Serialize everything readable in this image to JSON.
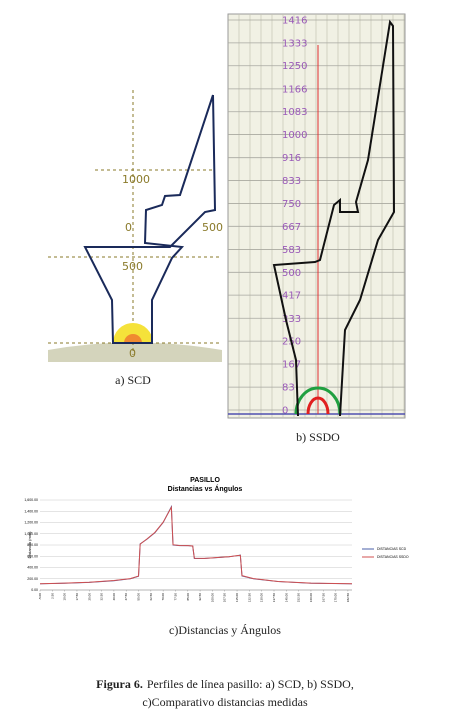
{
  "panels": {
    "a": {
      "caption": "a) SCD",
      "labels": [
        "1000",
        "0",
        "500",
        "500",
        "0"
      ]
    },
    "b": {
      "caption": "b) SSDO",
      "ylim": [
        0,
        1416
      ],
      "yticks": [
        0,
        83,
        167,
        250,
        333,
        417,
        500,
        583,
        667,
        750,
        833,
        916,
        1000,
        1083,
        1166,
        1250,
        1333,
        1416
      ]
    },
    "c": {
      "caption": "c)Distancias y Ángulos"
    }
  },
  "chart_data": {
    "type": "line",
    "title": "PASILLO",
    "subtitle": "Distancias vs Ángulos",
    "y_label": "Distancia (mm)",
    "x": [
      -5,
      10,
      25,
      40,
      50,
      55,
      56,
      60,
      65,
      70,
      75,
      76,
      80,
      85,
      88,
      89,
      95,
      100,
      105,
      110,
      115,
      117,
      118,
      125,
      140,
      160,
      185
    ],
    "series": [
      {
        "name": "DISTANCIAS SCD",
        "color": "#4a5fa8",
        "values": [
          110,
          120,
          135,
          165,
          200,
          245,
          820,
          900,
          1020,
          1200,
          1480,
          800,
          790,
          790,
          780,
          560,
          560,
          570,
          580,
          590,
          610,
          620,
          250,
          200,
          150,
          120,
          110
        ]
      },
      {
        "name": "DISTANCIAS SSDO",
        "color": "#d05050",
        "values": [
          112,
          122,
          137,
          168,
          203,
          248,
          815,
          905,
          1025,
          1205,
          1470,
          805,
          792,
          788,
          782,
          565,
          562,
          572,
          582,
          592,
          612,
          618,
          255,
          203,
          152,
          122,
          112
        ]
      }
    ],
    "xlim": [
      -5,
      185
    ],
    "ylim": [
      0,
      1600
    ],
    "xticks": [
      {
        "value": -5,
        "label": "-5.00"
      },
      {
        "value": 2.5,
        "label": "2.50"
      },
      {
        "value": 10,
        "label": "10.00"
      },
      {
        "value": 17.5,
        "label": "17.50"
      },
      {
        "value": 25,
        "label": "25.00"
      },
      {
        "value": 32.5,
        "label": "32.50"
      },
      {
        "value": 40,
        "label": "40.00"
      },
      {
        "value": 47.5,
        "label": "47.50"
      },
      {
        "value": 55,
        "label": "55.00"
      },
      {
        "value": 62.5,
        "label": "62.50"
      },
      {
        "value": 70,
        "label": "70.00"
      },
      {
        "value": 77.5,
        "label": "77.50"
      },
      {
        "value": 85,
        "label": "85.00"
      },
      {
        "value": 92.5,
        "label": "92.50"
      },
      {
        "value": 100,
        "label": "100.00"
      },
      {
        "value": 107.5,
        "label": "107.50"
      },
      {
        "value": 115,
        "label": "115.00"
      },
      {
        "value": 122.5,
        "label": "122.50"
      },
      {
        "value": 130,
        "label": "130.00"
      },
      {
        "value": 137.5,
        "label": "137.50"
      },
      {
        "value": 145,
        "label": "145.00"
      },
      {
        "value": 152.5,
        "label": "152.50"
      },
      {
        "value": 160,
        "label": "160.00"
      },
      {
        "value": 167.5,
        "label": "167.50"
      },
      {
        "value": 175,
        "label": "175.00"
      },
      {
        "value": 182.5,
        "label": "182.50"
      }
    ],
    "yticks": [
      {
        "value": 0,
        "label": "0.00"
      },
      {
        "value": 200,
        "label": "200.00"
      },
      {
        "value": 400,
        "label": "400.00"
      },
      {
        "value": 600,
        "label": "600.00"
      },
      {
        "value": 800,
        "label": "800.00"
      },
      {
        "value": 1000,
        "label": "1,000.00"
      },
      {
        "value": 1200,
        "label": "1,200.00"
      },
      {
        "value": 1400,
        "label": "1,400.00"
      },
      {
        "value": 1600,
        "label": "1,600.00"
      }
    ],
    "grid": true
  },
  "caption": {
    "label": "Figura 6.",
    "text": "Perfiles de línea pasillo: a) SCD, b) SSDO,",
    "text2": "c)Comparativo distancias medidas"
  }
}
